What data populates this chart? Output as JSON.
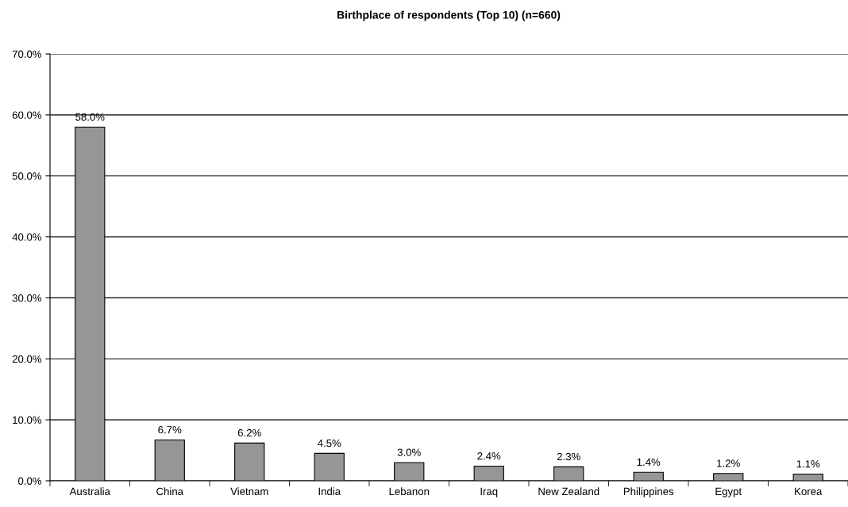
{
  "chart_data": {
    "type": "bar",
    "title": "Birthplace of respondents (Top 10) (n=660)",
    "categories": [
      "Australia",
      "China",
      "Vietnam",
      "India",
      "Lebanon",
      "Iraq",
      "New Zealand",
      "Philippines",
      "Egypt",
      "Korea"
    ],
    "values": [
      58.0,
      6.7,
      6.2,
      4.5,
      3.0,
      2.4,
      2.3,
      1.4,
      1.2,
      1.1
    ],
    "value_labels": [
      "58.0%",
      "6.7%",
      "6.2%",
      "4.5%",
      "3.0%",
      "2.4%",
      "2.3%",
      "1.4%",
      "1.2%",
      "1.1%"
    ],
    "color": "#969696",
    "ylim": [
      0,
      70
    ],
    "yticks": [
      {
        "value": 0,
        "label": "0.0%"
      },
      {
        "value": 10,
        "label": "10.0%"
      },
      {
        "value": 20,
        "label": "20.0%"
      },
      {
        "value": 30,
        "label": "30.0%"
      },
      {
        "value": 40,
        "label": "40.0%"
      },
      {
        "value": 50,
        "label": "50.0%"
      },
      {
        "value": 60,
        "label": "60.0%"
      },
      {
        "value": 70,
        "label": "70.0%"
      }
    ],
    "grid": "y"
  }
}
